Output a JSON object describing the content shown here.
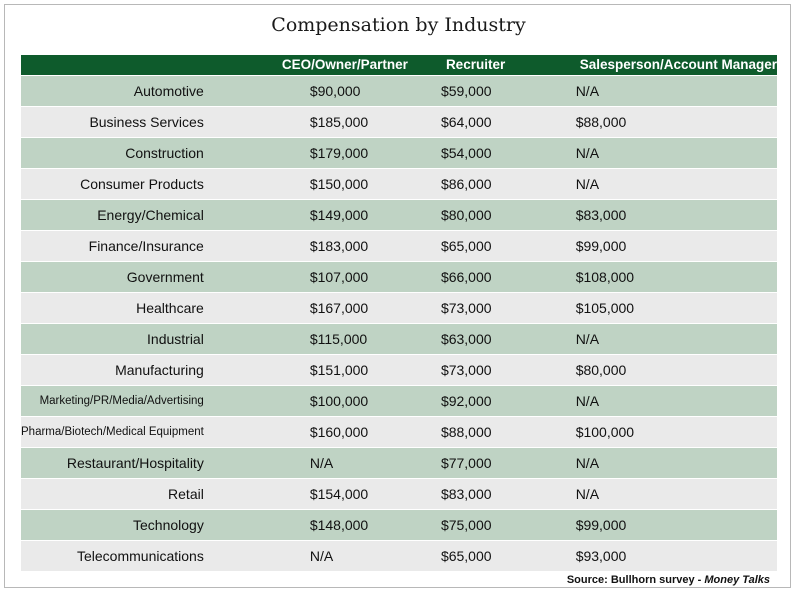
{
  "chart_data": {
    "type": "table",
    "title": "Compensation by Industry",
    "columns": [
      "CEO/Owner/Partner",
      "Recruiter",
      "Salesperson/Account Manager"
    ],
    "rows": [
      {
        "industry": "Automotive",
        "values": [
          "$90,000",
          "$59,000",
          "N/A"
        ]
      },
      {
        "industry": "Business Services",
        "values": [
          "$185,000",
          "$64,000",
          "$88,000"
        ]
      },
      {
        "industry": "Construction",
        "values": [
          "$179,000",
          "$54,000",
          "N/A"
        ]
      },
      {
        "industry": "Consumer Products",
        "values": [
          "$150,000",
          "$86,000",
          "N/A"
        ]
      },
      {
        "industry": "Energy/Chemical",
        "values": [
          "$149,000",
          "$80,000",
          "$83,000"
        ]
      },
      {
        "industry": "Finance/Insurance",
        "values": [
          "$183,000",
          "$65,000",
          "$99,000"
        ]
      },
      {
        "industry": "Government",
        "values": [
          "$107,000",
          "$66,000",
          "$108,000"
        ]
      },
      {
        "industry": "Healthcare",
        "values": [
          "$167,000",
          "$73,000",
          "$105,000"
        ]
      },
      {
        "industry": "Industrial",
        "values": [
          "$115,000",
          "$63,000",
          "N/A"
        ]
      },
      {
        "industry": "Manufacturing",
        "values": [
          "$151,000",
          "$73,000",
          "$80,000"
        ]
      },
      {
        "industry": "Marketing/PR/Media/Advertising",
        "values": [
          "$100,000",
          "$92,000",
          "N/A"
        ]
      },
      {
        "industry": "Pharma/Biotech/Medical Equipment",
        "values": [
          "$160,000",
          "$88,000",
          "$100,000"
        ]
      },
      {
        "industry": "Restaurant/Hospitality",
        "values": [
          "N/A",
          "$77,000",
          "N/A"
        ]
      },
      {
        "industry": "Retail",
        "values": [
          "$154,000",
          "$83,000",
          "N/A"
        ]
      },
      {
        "industry": "Technology",
        "values": [
          "$148,000",
          "$75,000",
          "$99,000"
        ]
      },
      {
        "industry": "Telecommunications",
        "values": [
          "N/A",
          "$65,000",
          "$93,000"
        ]
      }
    ]
  },
  "source": {
    "prefix": "Source: Bullhorn survey - ",
    "publication": "Money Talks"
  },
  "colors": {
    "header_bg": "#0e5b2c",
    "row_odd": "#bfd3c4",
    "row_even": "#eaeaea"
  }
}
